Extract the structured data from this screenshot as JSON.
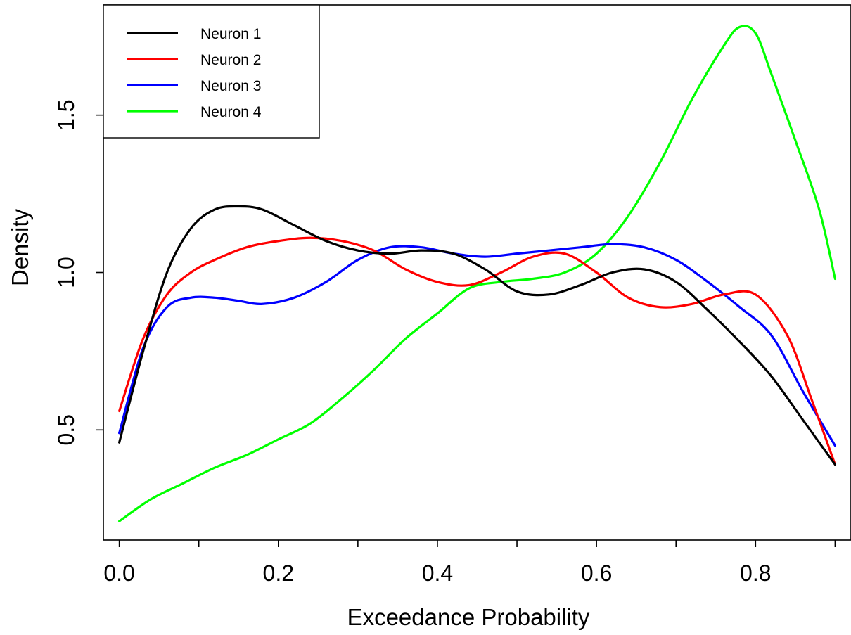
{
  "chart_data": {
    "type": "line",
    "title": "",
    "xlabel": "Exceedance Probability",
    "ylabel": "Density",
    "xlim": [
      -0.02,
      0.92
    ],
    "ylim": [
      0.15,
      1.85
    ],
    "grid": false,
    "legend_position": "top-left",
    "x_ticks": [
      0.0,
      0.2,
      0.4,
      0.6,
      0.8
    ],
    "x_tick_labels": [
      "0.0",
      "0.2",
      "0.4",
      "0.6",
      "0.8"
    ],
    "x_minor_ticks": [
      0.1,
      0.3,
      0.5,
      0.7,
      0.9
    ],
    "y_ticks": [
      0.5,
      1.0,
      1.5
    ],
    "y_tick_labels": [
      "0.5",
      "1.0",
      "1.5"
    ],
    "series": [
      {
        "name": "Neuron 1",
        "color": "#000000",
        "x": [
          0.0,
          0.03,
          0.06,
          0.09,
          0.12,
          0.15,
          0.18,
          0.22,
          0.26,
          0.3,
          0.34,
          0.38,
          0.42,
          0.46,
          0.5,
          0.54,
          0.58,
          0.62,
          0.66,
          0.7,
          0.74,
          0.78,
          0.82,
          0.86,
          0.9
        ],
        "y": [
          0.46,
          0.75,
          1.0,
          1.14,
          1.2,
          1.21,
          1.2,
          1.15,
          1.1,
          1.07,
          1.06,
          1.07,
          1.06,
          1.01,
          0.94,
          0.93,
          0.96,
          1.0,
          1.01,
          0.97,
          0.88,
          0.78,
          0.67,
          0.53,
          0.39
        ]
      },
      {
        "name": "Neuron 2",
        "color": "#ff0000",
        "x": [
          0.0,
          0.03,
          0.06,
          0.09,
          0.12,
          0.16,
          0.2,
          0.24,
          0.28,
          0.32,
          0.36,
          0.4,
          0.44,
          0.48,
          0.52,
          0.56,
          0.6,
          0.64,
          0.68,
          0.72,
          0.76,
          0.8,
          0.84,
          0.87,
          0.9
        ],
        "y": [
          0.56,
          0.79,
          0.93,
          1.0,
          1.04,
          1.08,
          1.1,
          1.11,
          1.1,
          1.07,
          1.01,
          0.97,
          0.96,
          1.0,
          1.05,
          1.06,
          1.0,
          0.92,
          0.89,
          0.9,
          0.93,
          0.93,
          0.8,
          0.6,
          0.39
        ]
      },
      {
        "name": "Neuron 3",
        "color": "#0000ff",
        "x": [
          0.0,
          0.03,
          0.06,
          0.09,
          0.12,
          0.15,
          0.18,
          0.22,
          0.26,
          0.3,
          0.34,
          0.38,
          0.42,
          0.46,
          0.5,
          0.54,
          0.58,
          0.62,
          0.66,
          0.7,
          0.74,
          0.78,
          0.82,
          0.86,
          0.9
        ],
        "y": [
          0.49,
          0.76,
          0.89,
          0.92,
          0.92,
          0.91,
          0.9,
          0.92,
          0.97,
          1.04,
          1.08,
          1.08,
          1.06,
          1.05,
          1.06,
          1.07,
          1.08,
          1.09,
          1.08,
          1.04,
          0.97,
          0.89,
          0.8,
          0.62,
          0.45
        ]
      },
      {
        "name": "Neuron 4",
        "color": "#00ff00",
        "x": [
          0.0,
          0.04,
          0.08,
          0.12,
          0.16,
          0.2,
          0.24,
          0.28,
          0.32,
          0.36,
          0.4,
          0.44,
          0.48,
          0.52,
          0.56,
          0.6,
          0.64,
          0.68,
          0.72,
          0.76,
          0.78,
          0.8,
          0.82,
          0.85,
          0.88,
          0.9
        ],
        "y": [
          0.21,
          0.28,
          0.33,
          0.38,
          0.42,
          0.47,
          0.52,
          0.6,
          0.69,
          0.79,
          0.87,
          0.95,
          0.97,
          0.98,
          1.0,
          1.06,
          1.18,
          1.35,
          1.55,
          1.72,
          1.78,
          1.76,
          1.63,
          1.42,
          1.2,
          0.98
        ]
      }
    ]
  }
}
